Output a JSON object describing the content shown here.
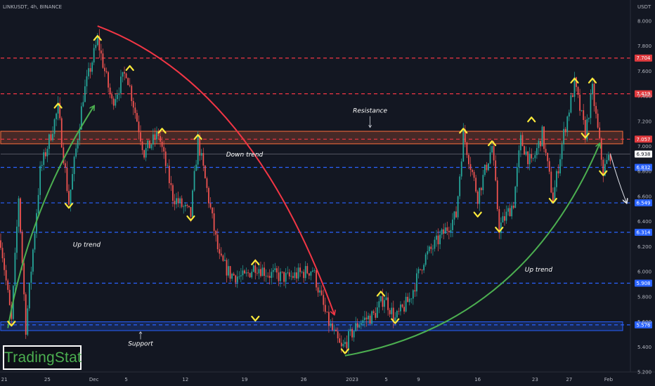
{
  "header": {
    "symbol_text": "LINKUSDT, 4h, BINANCE",
    "currency": "USDT"
  },
  "brand": {
    "label": "TradingStat",
    "color": "#4caf50"
  },
  "colors": {
    "background": "#131722",
    "up_candle": "#26a69a",
    "down_candle": "#ef5350",
    "resistance_line": "#f23645",
    "support_line": "#2962ff",
    "zone_fill": "#ff6f3c",
    "arrow_green": "#4caf50",
    "arrow_red": "#f23645",
    "marker_yellow": "#ffeb3b"
  },
  "chart_data": {
    "type": "candlestick",
    "title": "LINKUSDT, 4h, BINANCE",
    "ylim": [
      5.2,
      8.1
    ],
    "y_ticks": [
      "8.000",
      "7.800",
      "7.600",
      "7.400",
      "7.200",
      "7.000",
      "6.800",
      "6.600",
      "6.400",
      "6.200",
      "6.000",
      "5.800",
      "5.600",
      "5.400",
      "5.200"
    ],
    "x_ticks": [
      {
        "label": "21",
        "bar": 2
      },
      {
        "label": "25",
        "bar": 26
      },
      {
        "label": "Dec",
        "bar": 52
      },
      {
        "label": "5",
        "bar": 70
      },
      {
        "label": "12",
        "bar": 103
      },
      {
        "label": "19",
        "bar": 136
      },
      {
        "label": "26",
        "bar": 169
      },
      {
        "label": "2023",
        "bar": 196
      },
      {
        "label": "5",
        "bar": 215
      },
      {
        "label": "9",
        "bar": 233
      },
      {
        "label": "16",
        "bar": 266
      },
      {
        "label": "23",
        "bar": 298
      },
      {
        "label": "27",
        "bar": 317
      },
      {
        "label": "Feb",
        "bar": 339
      }
    ],
    "price_path": [
      [
        0,
        6.25
      ],
      [
        6,
        5.6
      ],
      [
        10,
        6.6
      ],
      [
        14,
        5.55
      ],
      [
        22,
        6.8
      ],
      [
        32,
        7.3
      ],
      [
        38,
        6.55
      ],
      [
        46,
        7.4
      ],
      [
        54,
        7.85
      ],
      [
        62,
        7.35
      ],
      [
        70,
        7.6
      ],
      [
        80,
        6.95
      ],
      [
        88,
        7.1
      ],
      [
        96,
        6.6
      ],
      [
        106,
        6.45
      ],
      [
        110,
        7.05
      ],
      [
        122,
        6.1
      ],
      [
        128,
        5.98
      ],
      [
        136,
        5.95
      ],
      [
        142,
        6.05
      ],
      [
        150,
        5.98
      ],
      [
        160,
        5.95
      ],
      [
        174,
        6.02
      ],
      [
        182,
        5.62
      ],
      [
        190,
        5.38
      ],
      [
        200,
        5.6
      ],
      [
        208,
        5.65
      ],
      [
        214,
        5.8
      ],
      [
        220,
        5.62
      ],
      [
        228,
        5.78
      ],
      [
        236,
        6.1
      ],
      [
        244,
        6.25
      ],
      [
        254,
        6.45
      ],
      [
        258,
        7.1
      ],
      [
        266,
        6.6
      ],
      [
        274,
        7.0
      ],
      [
        278,
        6.35
      ],
      [
        286,
        6.55
      ],
      [
        290,
        7.05
      ],
      [
        296,
        6.85
      ],
      [
        302,
        7.1
      ],
      [
        308,
        6.58
      ],
      [
        314,
        7.1
      ],
      [
        320,
        7.5
      ],
      [
        326,
        7.1
      ],
      [
        330,
        7.45
      ],
      [
        336,
        6.8
      ],
      [
        340,
        6.94
      ]
    ],
    "horizontal_levels": [
      {
        "price": 7.704,
        "label": "7.704",
        "kind": "resistance"
      },
      {
        "price": 7.419,
        "label": "7.419",
        "kind": "resistance"
      },
      {
        "price": 7.057,
        "label": "7.057",
        "kind": "resistance"
      },
      {
        "price": 6.938,
        "label": "6.938",
        "kind": "last_price"
      },
      {
        "price": 6.832,
        "label": "6.832",
        "kind": "support"
      },
      {
        "price": 6.549,
        "label": "6.549",
        "kind": "support"
      },
      {
        "price": 6.314,
        "label": "6.314",
        "kind": "support"
      },
      {
        "price": 5.908,
        "label": "5.908",
        "kind": "support"
      },
      {
        "price": 5.576,
        "label": "5.576",
        "kind": "support"
      }
    ],
    "zones": [
      {
        "name": "resistance-zone",
        "top": 7.12,
        "bottom": 7.02,
        "color": "#ff6f3c"
      },
      {
        "name": "support-zone",
        "top": 5.6,
        "bottom": 5.53,
        "color": "#2962ff"
      }
    ],
    "annotations": [
      {
        "text": "Resistance",
        "bar": 206,
        "price": 7.27
      },
      {
        "text": "Down trend",
        "bar": 136,
        "price": 6.92
      },
      {
        "text": "Up trend",
        "bar": 48,
        "price": 6.2
      },
      {
        "text": "Up trend",
        "bar": 300,
        "price": 6.0
      },
      {
        "text": "Support",
        "bar": 78,
        "price": 5.41
      }
    ],
    "trend_arrows": [
      {
        "color": "green",
        "from": [
          4,
          5.55
        ],
        "to": [
          52,
          7.32
        ]
      },
      {
        "color": "red",
        "from": [
          54,
          7.96
        ],
        "to": [
          186,
          5.66
        ]
      },
      {
        "color": "green",
        "from": [
          192,
          5.33
        ],
        "to": [
          334,
          7.02
        ]
      },
      {
        "color": "white",
        "from": [
          340,
          6.94
        ],
        "to": [
          349,
          6.55
        ]
      }
    ],
    "markers": [
      {
        "dir": "up",
        "bar": 32,
        "price": 7.33
      },
      {
        "dir": "up",
        "bar": 54,
        "price": 7.87
      },
      {
        "dir": "up",
        "bar": 72,
        "price": 7.63
      },
      {
        "dir": "up",
        "bar": 90,
        "price": 7.13
      },
      {
        "dir": "up",
        "bar": 110,
        "price": 7.08
      },
      {
        "dir": "up",
        "bar": 142,
        "price": 6.08
      },
      {
        "dir": "up",
        "bar": 212,
        "price": 5.83
      },
      {
        "dir": "up",
        "bar": 258,
        "price": 7.13
      },
      {
        "dir": "up",
        "bar": 274,
        "price": 7.03
      },
      {
        "dir": "up",
        "bar": 296,
        "price": 7.22
      },
      {
        "dir": "up",
        "bar": 320,
        "price": 7.53
      },
      {
        "dir": "up",
        "bar": 330,
        "price": 7.53
      },
      {
        "dir": "down",
        "bar": 6,
        "price": 5.58
      },
      {
        "dir": "down",
        "bar": 38,
        "price": 6.52
      },
      {
        "dir": "down",
        "bar": 106,
        "price": 6.42
      },
      {
        "dir": "down",
        "bar": 142,
        "price": 5.62
      },
      {
        "dir": "down",
        "bar": 192,
        "price": 5.36
      },
      {
        "dir": "down",
        "bar": 220,
        "price": 5.6
      },
      {
        "dir": "down",
        "bar": 266,
        "price": 6.45
      },
      {
        "dir": "down",
        "bar": 278,
        "price": 6.33
      },
      {
        "dir": "down",
        "bar": 308,
        "price": 6.56
      },
      {
        "dir": "down",
        "bar": 326,
        "price": 7.08
      },
      {
        "dir": "down",
        "bar": 336,
        "price": 6.78
      }
    ]
  }
}
